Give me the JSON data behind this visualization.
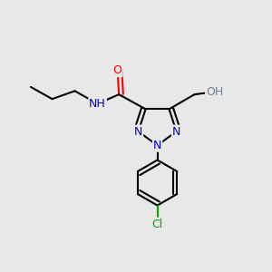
{
  "bg_color": "#e8e8e8",
  "bond_color": "#000000",
  "bond_width": 1.5,
  "atom_colors": {
    "C": "#000000",
    "N": "#0000cc",
    "O": "#ff0000",
    "Cl": "#00aa00",
    "H_gray": "#708090"
  },
  "figsize": [
    3.0,
    3.0
  ],
  "dpi": 100,
  "xlim": [
    0.0,
    1.0
  ],
  "ylim": [
    0.0,
    1.0
  ]
}
